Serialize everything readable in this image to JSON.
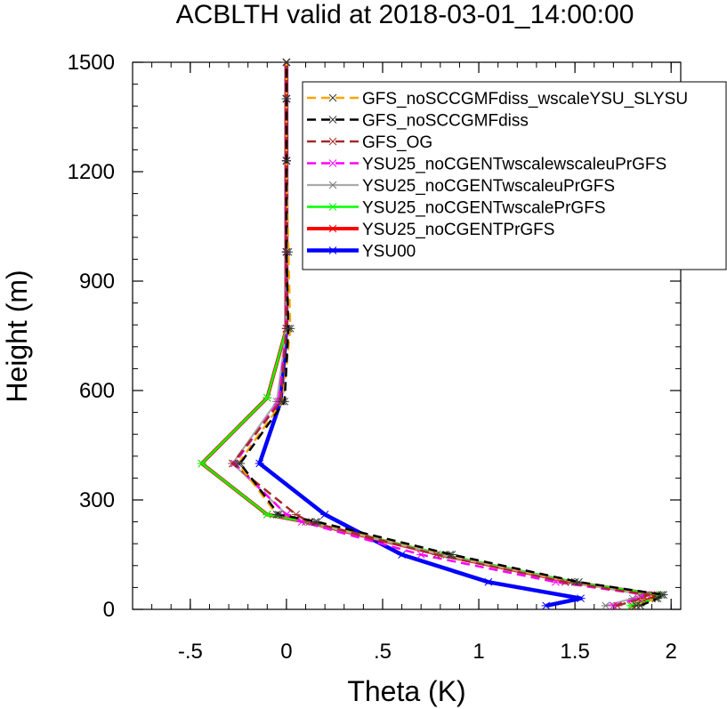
{
  "chart_data": {
    "type": "line",
    "title": "ACBLTH valid at 2018-03-01_14:00:00",
    "xlabel": "Theta (K)",
    "ylabel": "Height (m)",
    "xlim": [
      -0.8,
      2.05
    ],
    "ylim": [
      0,
      1500
    ],
    "grid": false,
    "legend_position": "top-right",
    "x_ticks": [
      {
        "value": -0.5,
        "label": "-.5"
      },
      {
        "value": 0,
        "label": "0"
      },
      {
        "value": 0.5,
        "label": ".5"
      },
      {
        "value": 1,
        "label": "1"
      },
      {
        "value": 1.5,
        "label": "1.5"
      },
      {
        "value": 2,
        "label": "2"
      }
    ],
    "y_ticks": [
      {
        "value": 0,
        "label": "0"
      },
      {
        "value": 300,
        "label": "300"
      },
      {
        "value": 600,
        "label": "600"
      },
      {
        "value": 900,
        "label": "900"
      },
      {
        "value": 1200,
        "label": "1200"
      },
      {
        "value": 1500,
        "label": "1500"
      }
    ],
    "series": [
      {
        "name": "GFS_noSCCGMFdiss_wscaleYSU_SLYSU",
        "color": "#ffa500",
        "dash": "dash",
        "x": [
          1.82,
          1.92,
          1.95,
          1.5,
          0.85,
          0.15,
          -0.05,
          -0.25,
          -0.02,
          0.02,
          0.01,
          0.0,
          0.0,
          0.0
        ],
        "y": [
          10,
          30,
          40,
          75,
          150,
          240,
          260,
          400,
          570,
          770,
          980,
          1230,
          1400,
          1500
        ]
      },
      {
        "name": "GFS_noSCCGMFdiss",
        "color": "#000000",
        "dash": "dash",
        "x": [
          1.84,
          1.93,
          1.96,
          1.52,
          0.86,
          0.16,
          -0.04,
          -0.24,
          -0.01,
          0.01,
          0.0,
          0.0,
          0.0,
          0.0
        ],
        "y": [
          10,
          30,
          40,
          75,
          150,
          240,
          260,
          400,
          570,
          770,
          980,
          1230,
          1400,
          1500
        ]
      },
      {
        "name": "GFS_OG",
        "color": "#a52a2a",
        "dash": "dash",
        "x": [
          1.72,
          1.85,
          1.88,
          1.45,
          0.78,
          0.12,
          0.05,
          -0.28,
          -0.03,
          0.0,
          0.0,
          0.0,
          0.0,
          0.0
        ],
        "y": [
          10,
          30,
          40,
          75,
          150,
          240,
          260,
          400,
          570,
          770,
          980,
          1230,
          1400,
          1500
        ]
      },
      {
        "name": "YSU25_noCGENTwscalewscaleuPrGFS",
        "color": "#ff00ff",
        "dash": "dash",
        "x": [
          1.7,
          1.83,
          1.87,
          1.4,
          0.7,
          0.08,
          0.0,
          -0.27,
          -0.04,
          0.0,
          0.0,
          0.0,
          0.0,
          0.0
        ],
        "y": [
          10,
          30,
          40,
          75,
          150,
          240,
          260,
          400,
          570,
          770,
          980,
          1230,
          1400,
          1500
        ]
      },
      {
        "name": "YSU25_noCGENTwscaleuPrGFS",
        "color": "#aaaaaa",
        "dash": "solid",
        "x": [
          1.66,
          1.8,
          1.85,
          1.48,
          0.8,
          0.1,
          0.0,
          -0.28,
          -0.05,
          0.0,
          0.0,
          0.0,
          0.0,
          0.0
        ],
        "y": [
          10,
          30,
          40,
          75,
          150,
          240,
          260,
          400,
          570,
          770,
          980,
          1230,
          1400,
          1500
        ]
      },
      {
        "name": "YSU25_noCGENTwscalePrGFS",
        "color": "#00ff00",
        "dash": "solid",
        "x": [
          1.79,
          1.92,
          1.94,
          1.5,
          0.82,
          0.1,
          -0.1,
          -0.44,
          -0.1,
          0.0,
          0.0,
          0.0,
          0.0,
          0.0
        ],
        "y": [
          10,
          30,
          40,
          75,
          150,
          240,
          260,
          400,
          580,
          770,
          980,
          1230,
          1400,
          1500
        ]
      },
      {
        "name": "YSU25_noCGENTPrGFS",
        "color": "#ff0000",
        "dash": "solid",
        "x": [
          1.8,
          1.9,
          1.93,
          1.48,
          0.8,
          0.1,
          -0.1,
          -0.44,
          -0.1,
          0.0,
          0.0,
          0.0,
          0.0,
          0.0
        ],
        "y": [
          10,
          30,
          40,
          75,
          150,
          240,
          260,
          400,
          580,
          770,
          980,
          1230,
          1400,
          1500
        ]
      },
      {
        "name": "YSU00",
        "color": "#0000ff",
        "dash": "solid",
        "x": [
          1.35,
          1.53,
          1.05,
          0.6,
          0.2,
          -0.14,
          -0.03,
          0.0,
          0.0,
          0.0,
          0.0,
          0.0
        ],
        "y": [
          10,
          30,
          75,
          150,
          260,
          400,
          570,
          770,
          980,
          1230,
          1400,
          1500
        ]
      }
    ]
  }
}
